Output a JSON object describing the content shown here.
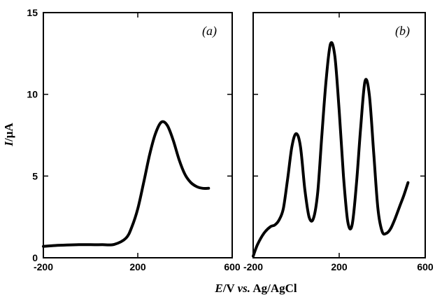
{
  "chart_data": [
    {
      "type": "line",
      "panel_label": "(a)",
      "xlim": [
        -200,
        600
      ],
      "ylim": [
        0,
        15
      ],
      "xticks": [
        -200,
        200,
        600
      ],
      "yticks": [
        0,
        5,
        10,
        15
      ],
      "series": [
        {
          "x": [
            -200,
            -150,
            -100,
            -50,
            0,
            50,
            100,
            150,
            175,
            200,
            225,
            250,
            275,
            300,
            325,
            350,
            375,
            400,
            425,
            450,
            475,
            500
          ],
          "y": [
            0.7,
            0.75,
            0.78,
            0.8,
            0.8,
            0.8,
            0.82,
            1.2,
            1.9,
            3.0,
            4.6,
            6.3,
            7.6,
            8.3,
            8.1,
            7.2,
            6.0,
            5.1,
            4.6,
            4.35,
            4.25,
            4.25
          ]
        }
      ]
    },
    {
      "type": "line",
      "panel_label": "(b)",
      "xlim": [
        -200,
        600
      ],
      "ylim": [
        0,
        15
      ],
      "xticks": [
        -200,
        200,
        600
      ],
      "yticks": [
        0,
        5,
        10,
        15
      ],
      "series": [
        {
          "x": [
            -200,
            -180,
            -150,
            -120,
            -100,
            -80,
            -60,
            -40,
            -20,
            0,
            20,
            40,
            60,
            80,
            100,
            120,
            140,
            160,
            180,
            200,
            220,
            240,
            260,
            280,
            300,
            320,
            340,
            360,
            380,
            400,
            420,
            440,
            460,
            480,
            500,
            520
          ],
          "y": [
            0.1,
            0.8,
            1.5,
            1.9,
            2.0,
            2.3,
            3.0,
            4.8,
            6.8,
            7.6,
            6.8,
            4.2,
            2.5,
            2.4,
            4.0,
            7.6,
            11.0,
            13.1,
            12.3,
            9.0,
            5.0,
            2.2,
            2.0,
            4.5,
            8.0,
            10.8,
            10.0,
            6.5,
            3.0,
            1.6,
            1.5,
            1.8,
            2.4,
            3.1,
            3.8,
            4.6
          ]
        }
      ]
    }
  ],
  "y_axis_title": "I/μA",
  "x_axis_title": "E/V vs. Ag/AgCl"
}
